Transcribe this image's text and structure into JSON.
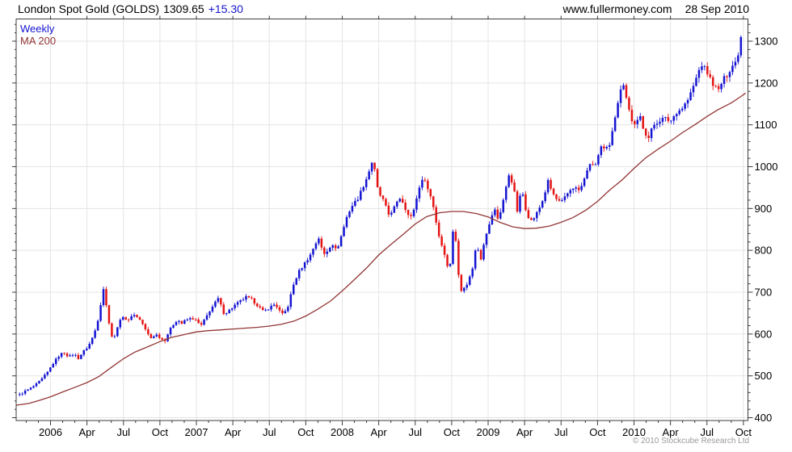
{
  "header": {
    "instrument": "London Spot Gold (GOLDS)",
    "last": "1309.65",
    "change": "+15.30",
    "website": "www.fullermoney.com",
    "date": "28 Sep 2010"
  },
  "legend": {
    "interval_label": "Weekly",
    "ma_label": "MA 200"
  },
  "footer": {
    "copyright": "© 2010 Stockcube Research Ltd"
  },
  "colors": {
    "up": "#1414d2",
    "down": "#e51414",
    "ma": "#933636",
    "grid": "#e4e4e4",
    "axis": "#3c3c3c",
    "text": "#000000",
    "change_text": "#1414cc",
    "copyright_text": "#9a9a9a",
    "plot_bg": "#ffffff"
  },
  "chart_data": {
    "type": "candlestick",
    "title": "London Spot Gold (GOLDS)",
    "interval": "Weekly",
    "overlay": "MA 200",
    "last_price": 1309.65,
    "change": 15.3,
    "as_of": "28 Sep 2010",
    "grid": true,
    "legend_position": "top-left",
    "y_axis": {
      "min": 393,
      "max": 1353,
      "tick_step": 100,
      "minor_step": 20,
      "labels": [
        400,
        500,
        600,
        700,
        800,
        900,
        1000,
        1100,
        1200,
        1300
      ]
    },
    "x_axis": {
      "start": 2005.766,
      "end": 2010.765,
      "minor_tick": "monthly",
      "ticks": [
        {
          "p": 2006.0,
          "label": "2006"
        },
        {
          "p": 2006.25,
          "label": "Apr"
        },
        {
          "p": 2006.5,
          "label": "Jul"
        },
        {
          "p": 2006.75,
          "label": "Oct"
        },
        {
          "p": 2007.0,
          "label": "2007"
        },
        {
          "p": 2007.25,
          "label": "Apr"
        },
        {
          "p": 2007.5,
          "label": "Jul"
        },
        {
          "p": 2007.75,
          "label": "Oct"
        },
        {
          "p": 2008.0,
          "label": "2008"
        },
        {
          "p": 2008.25,
          "label": "Apr"
        },
        {
          "p": 2008.5,
          "label": "Jul"
        },
        {
          "p": 2008.75,
          "label": "Oct"
        },
        {
          "p": 2009.0,
          "label": "2009"
        },
        {
          "p": 2009.25,
          "label": "Apr"
        },
        {
          "p": 2009.5,
          "label": "Jul"
        },
        {
          "p": 2009.75,
          "label": "Oct"
        },
        {
          "p": 2010.0,
          "label": "2010"
        },
        {
          "p": 2010.25,
          "label": "Apr"
        },
        {
          "p": 2010.5,
          "label": "Jul"
        },
        {
          "p": 2010.75,
          "label": "Oct"
        }
      ]
    },
    "weekly_close_anchors": [
      [
        2005.788,
        455
      ],
      [
        2005.825,
        463
      ],
      [
        2005.862,
        470
      ],
      [
        2005.9,
        479
      ],
      [
        2005.94,
        492
      ],
      [
        2005.98,
        509
      ],
      [
        2006.02,
        531
      ],
      [
        2006.06,
        549
      ],
      [
        2006.09,
        557
      ],
      [
        2006.125,
        545
      ],
      [
        2006.16,
        553
      ],
      [
        2006.19,
        542
      ],
      [
        2006.22,
        556
      ],
      [
        2006.26,
        571
      ],
      [
        2006.3,
        601
      ],
      [
        2006.335,
        648
      ],
      [
        2006.36,
        715
      ],
      [
        2006.385,
        662
      ],
      [
        2006.41,
        610
      ],
      [
        2006.43,
        581
      ],
      [
        2006.46,
        620
      ],
      [
        2006.5,
        645
      ],
      [
        2006.53,
        628
      ],
      [
        2006.56,
        648
      ],
      [
        2006.6,
        640
      ],
      [
        2006.63,
        625
      ],
      [
        2006.66,
        603
      ],
      [
        2006.69,
        590
      ],
      [
        2006.72,
        600
      ],
      [
        2006.75,
        592
      ],
      [
        2006.78,
        582
      ],
      [
        2006.81,
        605
      ],
      [
        2006.84,
        622
      ],
      [
        2006.87,
        635
      ],
      [
        2006.9,
        625
      ],
      [
        2006.93,
        634
      ],
      [
        2006.97,
        638
      ],
      [
        2007.0,
        632
      ],
      [
        2007.03,
        619
      ],
      [
        2007.06,
        636
      ],
      [
        2007.09,
        655
      ],
      [
        2007.12,
        670
      ],
      [
        2007.15,
        685
      ],
      [
        2007.19,
        648
      ],
      [
        2007.22,
        655
      ],
      [
        2007.26,
        668
      ],
      [
        2007.3,
        678
      ],
      [
        2007.34,
        688
      ],
      [
        2007.38,
        682
      ],
      [
        2007.42,
        668
      ],
      [
        2007.46,
        653
      ],
      [
        2007.5,
        663
      ],
      [
        2007.54,
        672
      ],
      [
        2007.57,
        655
      ],
      [
        2007.595,
        645
      ],
      [
        2007.63,
        668
      ],
      [
        2007.66,
        712
      ],
      [
        2007.7,
        748
      ],
      [
        2007.74,
        768
      ],
      [
        2007.78,
        788
      ],
      [
        2007.81,
        812
      ],
      [
        2007.84,
        830
      ],
      [
        2007.87,
        788
      ],
      [
        2007.9,
        800
      ],
      [
        2007.93,
        818
      ],
      [
        2007.96,
        798
      ],
      [
        2008.0,
        842
      ],
      [
        2008.035,
        885
      ],
      [
        2008.07,
        908
      ],
      [
        2008.105,
        923
      ],
      [
        2008.14,
        950
      ],
      [
        2008.175,
        980
      ],
      [
        2008.21,
        1018
      ],
      [
        2008.245,
        940
      ],
      [
        2008.28,
        920
      ],
      [
        2008.32,
        884
      ],
      [
        2008.36,
        904
      ],
      [
        2008.4,
        928
      ],
      [
        2008.44,
        893
      ],
      [
        2008.48,
        878
      ],
      [
        2008.515,
        934
      ],
      [
        2008.55,
        974
      ],
      [
        2008.585,
        952
      ],
      [
        2008.62,
        912
      ],
      [
        2008.66,
        838
      ],
      [
        2008.7,
        792
      ],
      [
        2008.735,
        747
      ],
      [
        2008.765,
        872
      ],
      [
        2008.79,
        780
      ],
      [
        2008.805,
        696
      ],
      [
        2008.83,
        712
      ],
      [
        2008.86,
        722
      ],
      [
        2008.89,
        752
      ],
      [
        2008.92,
        815
      ],
      [
        2008.95,
        780
      ],
      [
        2008.98,
        835
      ],
      [
        2009.01,
        862
      ],
      [
        2009.04,
        902
      ],
      [
        2009.07,
        872
      ],
      [
        2009.1,
        915
      ],
      [
        2009.12,
        945
      ],
      [
        2009.145,
        985
      ],
      [
        2009.175,
        950
      ],
      [
        2009.2,
        893
      ],
      [
        2009.23,
        948
      ],
      [
        2009.26,
        895
      ],
      [
        2009.29,
        869
      ],
      [
        2009.32,
        880
      ],
      [
        2009.35,
        900
      ],
      [
        2009.38,
        925
      ],
      [
        2009.41,
        965
      ],
      [
        2009.44,
        938
      ],
      [
        2009.47,
        921
      ],
      [
        2009.5,
        913
      ],
      [
        2009.53,
        928
      ],
      [
        2009.56,
        944
      ],
      [
        2009.59,
        952
      ],
      [
        2009.62,
        943
      ],
      [
        2009.65,
        958
      ],
      [
        2009.68,
        995
      ],
      [
        2009.71,
        1007
      ],
      [
        2009.74,
        1005
      ],
      [
        2009.77,
        1045
      ],
      [
        2009.8,
        1040
      ],
      [
        2009.83,
        1050
      ],
      [
        2009.86,
        1105
      ],
      [
        2009.89,
        1150
      ],
      [
        2009.92,
        1212
      ],
      [
        2009.95,
        1160
      ],
      [
        2009.98,
        1115
      ],
      [
        2010.01,
        1095
      ],
      [
        2010.04,
        1123
      ],
      [
        2010.07,
        1085
      ],
      [
        2010.1,
        1068
      ],
      [
        2010.13,
        1098
      ],
      [
        2010.17,
        1110
      ],
      [
        2010.21,
        1116
      ],
      [
        2010.25,
        1108
      ],
      [
        2010.29,
        1130
      ],
      [
        2010.33,
        1140
      ],
      [
        2010.37,
        1160
      ],
      [
        2010.4,
        1185
      ],
      [
        2010.43,
        1215
      ],
      [
        2010.46,
        1245
      ],
      [
        2010.49,
        1233
      ],
      [
        2010.52,
        1212
      ],
      [
        2010.55,
        1192
      ],
      [
        2010.58,
        1183
      ],
      [
        2010.61,
        1208
      ],
      [
        2010.64,
        1220
      ],
      [
        2010.67,
        1240
      ],
      [
        2010.695,
        1250
      ],
      [
        2010.715,
        1272
      ],
      [
        2010.733,
        1309.65
      ]
    ],
    "ma200_points": [
      [
        2005.766,
        430
      ],
      [
        2005.85,
        434
      ],
      [
        2005.92,
        441
      ],
      [
        2006.0,
        450
      ],
      [
        2006.08,
        461
      ],
      [
        2006.17,
        473
      ],
      [
        2006.25,
        484
      ],
      [
        2006.33,
        498
      ],
      [
        2006.42,
        521
      ],
      [
        2006.5,
        541
      ],
      [
        2006.58,
        557
      ],
      [
        2006.67,
        570
      ],
      [
        2006.75,
        582
      ],
      [
        2006.83,
        592
      ],
      [
        2006.92,
        599
      ],
      [
        2007.0,
        605
      ],
      [
        2007.08,
        608
      ],
      [
        2007.17,
        610
      ],
      [
        2007.25,
        612
      ],
      [
        2007.33,
        614
      ],
      [
        2007.42,
        616
      ],
      [
        2007.5,
        619
      ],
      [
        2007.58,
        623
      ],
      [
        2007.67,
        631
      ],
      [
        2007.75,
        643
      ],
      [
        2007.83,
        659
      ],
      [
        2007.92,
        679
      ],
      [
        2008.0,
        703
      ],
      [
        2008.08,
        729
      ],
      [
        2008.17,
        759
      ],
      [
        2008.25,
        789
      ],
      [
        2008.33,
        813
      ],
      [
        2008.42,
        839
      ],
      [
        2008.5,
        863
      ],
      [
        2008.58,
        881
      ],
      [
        2008.67,
        890
      ],
      [
        2008.75,
        893
      ],
      [
        2008.83,
        893
      ],
      [
        2008.92,
        888
      ],
      [
        2009.0,
        880
      ],
      [
        2009.08,
        867
      ],
      [
        2009.17,
        856
      ],
      [
        2009.25,
        852
      ],
      [
        2009.33,
        853
      ],
      [
        2009.42,
        858
      ],
      [
        2009.5,
        867
      ],
      [
        2009.58,
        878
      ],
      [
        2009.67,
        896
      ],
      [
        2009.75,
        917
      ],
      [
        2009.83,
        943
      ],
      [
        2009.92,
        969
      ],
      [
        2010.0,
        996
      ],
      [
        2010.08,
        1021
      ],
      [
        2010.17,
        1043
      ],
      [
        2010.25,
        1061
      ],
      [
        2010.33,
        1081
      ],
      [
        2010.42,
        1101
      ],
      [
        2010.5,
        1120
      ],
      [
        2010.58,
        1137
      ],
      [
        2010.67,
        1153
      ],
      [
        2010.73,
        1167
      ],
      [
        2010.765,
        1176
      ]
    ]
  }
}
